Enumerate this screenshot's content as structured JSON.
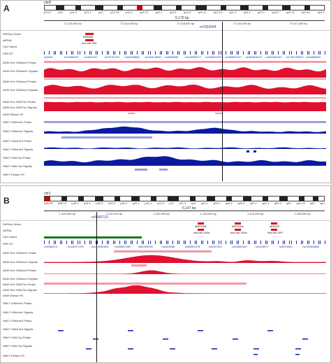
{
  "panelA": {
    "letter": "A",
    "chromosome": "chr8",
    "ideogram_labels": [
      "p23.2",
      "p22",
      "p21.3",
      "p21.1",
      "p12",
      "p11.23",
      "p11.1",
      "q11.21",
      "q12.1",
      "q13.1",
      "q13.3",
      "q21.11",
      "q21.13",
      "q21.3",
      "q22.2",
      "q23.1",
      "q23.3",
      "q24.12",
      "q24.21",
      "q24.3"
    ],
    "region_length": "5,176 bp",
    "ruler_ticks": [
      "72,113,000 bp",
      "72,114,000 bp",
      "72,115,000 bp",
      "72,116,000 bp",
      "72,117,000 bp"
    ],
    "locus": "rs7833354",
    "genes": [
      {
        "label": "MIR30A",
        "type": "RefSeq"
      },
      {
        "label": "hsa-mir-30a",
        "type": "miRNA"
      }
    ],
    "snps": [
      "rs2540",
      "rs79655267",
      "rs1813747",
      "rs73747125",
      "rs34165655",
      "rs140473692",
      "rs4640580",
      "rs143956177",
      "rs148451997",
      "rs196937427",
      "rs189319437",
      "rs202367467",
      "rs1761705497",
      "rs34468391"
    ],
    "tracks": [
      "RefSeq Genes",
      "miRNA",
      "CpG Island",
      "SNP137",
      "A549 Dex H3k4me1 Peaks",
      "A549 Dex H3k4me1 Signals",
      "A549 Dex H3k4me3 Peaks",
      "A549 Dex H3k4me3 Signals",
      "A549 Dex H3k27ac Peaks",
      "A549 Dex H3k27ac Signals",
      "A549 DNase HS",
      "HMLF H3k4me1 Peaks",
      "HMLF H3k4me1 Signals",
      "HMLF H3k4me3 Peaks",
      "HMLF H3k4me3 Signals",
      "HMLF H3k27ac Peaks",
      "HMLF H3k27ac Signals",
      "HMLF DNase HS"
    ]
  },
  "panelB": {
    "letter": "B",
    "chromosome": "chr1",
    "ideogram_labels": [
      "p36.33",
      "p36.13",
      "p35.1",
      "p34.1",
      "p32.3",
      "p31.3",
      "p31.1",
      "p22.1",
      "p21.1",
      "p13.3",
      "p12",
      "p11.1",
      "q12",
      "q21.1",
      "q23.1",
      "q24.2",
      "q25.3",
      "q31.1",
      "q32.1",
      "q32.3",
      "q41",
      "q42.13",
      "q43",
      "q44"
    ],
    "region_length": "6,147 bp",
    "ruler_ticks": [
      "1,100,000 bp",
      "1,101,000 bp",
      "1,102,000 bp",
      "1,103,000 bp",
      "1,104,000 bp",
      "1,105,000 bp"
    ],
    "locus": "rs9660710",
    "genes": [
      {
        "label": "MIR200B",
        "type": "RefSeq"
      },
      {
        "label": "MIR200A",
        "type": "RefSeq"
      },
      {
        "label": "MIR429",
        "type": "RefSeq"
      },
      {
        "label": "hsa-mir-200b",
        "type": "miRNA"
      },
      {
        "label": "hsa-mir-200a",
        "type": "miRNA"
      },
      {
        "label": "hsa-mir-429",
        "type": "miRNA"
      }
    ],
    "snps": [
      "rs2084213",
      "rs116371709",
      "rs1114380602",
      "rs189837481",
      "rs80269039",
      "rs6443286",
      "rs80551278",
      "rs2097413",
      "rs12682100",
      "rs1105977",
      "rs4870062",
      "rs149081888"
    ],
    "tracks": [
      "RefSeq Genes",
      "miRNA",
      "CpG Island",
      "SNP137",
      "A549 Dex H3k4me1 Peaks",
      "A549 Dex H3k4me1 Signals",
      "A549 Dex H3k4me3 Peaks",
      "A549 Dex H3k4me3 Signals",
      "A549 Dex H3k27ac Peaks",
      "A549 Dex H3k27ac Signals",
      "A549 DNase HS",
      "HMLF H3k4me1 Peaks",
      "HMLF H3k4me1 Signals",
      "HMLF H3k4me3 Peaks",
      "HMLF H3k4me3 Signals",
      "HMLF H3k27ac Peaks",
      "HMLF H3k27ac Signals",
      "HMLF DNase HS"
    ]
  },
  "colors": {
    "a549_signal": "#e0102f",
    "a549_peak": "#f29aa8",
    "hmlf_signal": "#0c1aa0",
    "hmlf_peak": "#9aa0dd",
    "gene": "#d9161e",
    "snp": "#1f2e9c",
    "cpg": "#1a7a1a"
  }
}
